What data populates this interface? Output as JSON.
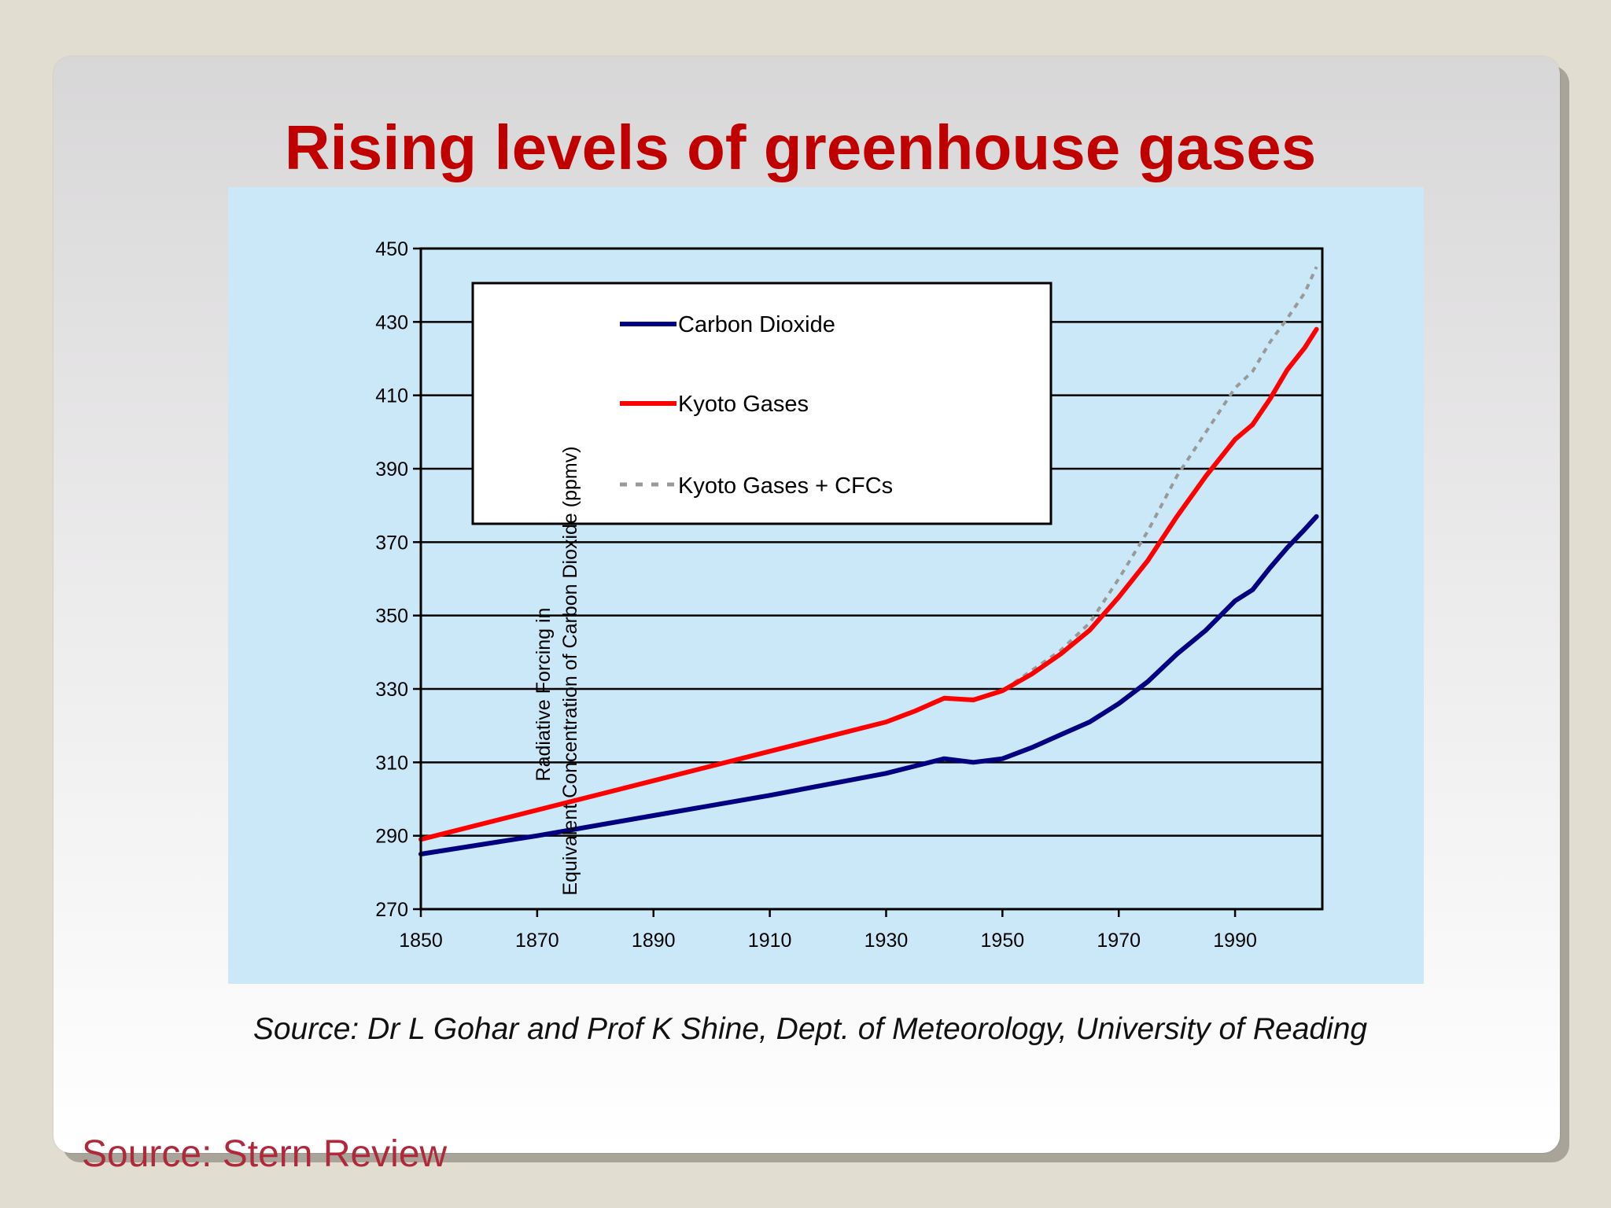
{
  "slide": {
    "title": "Rising levels of greenhouse gases",
    "chart_source": "Source: Dr L Gohar and Prof K Shine, Dept. of Meteorology, University of Reading",
    "footer_source": "Source: Stern Review",
    "colors": {
      "background": "#e2ddd1",
      "title": "#c00000",
      "chart_panel": "#cbe8f8",
      "footer": "#b0283a"
    }
  },
  "chart_data": {
    "type": "line",
    "title": "",
    "xlabel": "",
    "ylabel_lines": [
      "Radiative Forcing in",
      "Equivalent Concentration of Carbon Dioxide (ppmv)"
    ],
    "xlim": [
      1850,
      2005
    ],
    "ylim": [
      270,
      450
    ],
    "x_ticks": [
      1850,
      1870,
      1890,
      1910,
      1930,
      1950,
      1970,
      1990
    ],
    "y_ticks": [
      270,
      290,
      310,
      330,
      350,
      370,
      390,
      410,
      430,
      450
    ],
    "grid": "horizontal",
    "legend_position": "top-left",
    "series": [
      {
        "name": "Carbon Dioxide",
        "color": "#000080",
        "style": "solid",
        "points": [
          [
            1850,
            285
          ],
          [
            1870,
            290
          ],
          [
            1890,
            295.5
          ],
          [
            1910,
            301
          ],
          [
            1930,
            307
          ],
          [
            1935,
            309
          ],
          [
            1940,
            311
          ],
          [
            1945,
            310
          ],
          [
            1950,
            311
          ],
          [
            1955,
            314
          ],
          [
            1960,
            317.5
          ],
          [
            1965,
            321
          ],
          [
            1970,
            326
          ],
          [
            1975,
            332
          ],
          [
            1980,
            339.5
          ],
          [
            1985,
            346
          ],
          [
            1990,
            354
          ],
          [
            1993,
            357
          ],
          [
            1996,
            363
          ],
          [
            1999,
            368.5
          ],
          [
            2002,
            373.5
          ],
          [
            2004,
            377
          ]
        ]
      },
      {
        "name": "Kyoto Gases",
        "color": "#ff0000",
        "style": "solid",
        "points": [
          [
            1850,
            289
          ],
          [
            1870,
            297
          ],
          [
            1890,
            305
          ],
          [
            1910,
            313
          ],
          [
            1930,
            321
          ],
          [
            1935,
            324
          ],
          [
            1940,
            327.5
          ],
          [
            1945,
            327
          ],
          [
            1950,
            329.5
          ],
          [
            1955,
            334
          ],
          [
            1960,
            339.5
          ],
          [
            1965,
            346
          ],
          [
            1970,
            355
          ],
          [
            1975,
            365
          ],
          [
            1980,
            377
          ],
          [
            1985,
            388
          ],
          [
            1990,
            398
          ],
          [
            1993,
            402
          ],
          [
            1996,
            409
          ],
          [
            1999,
            417
          ],
          [
            2002,
            423
          ],
          [
            2004,
            428
          ]
        ]
      },
      {
        "name": "Kyoto Gases + CFCs",
        "color": "#999999",
        "style": "dashed",
        "points": [
          [
            1850,
            289
          ],
          [
            1870,
            297
          ],
          [
            1890,
            305
          ],
          [
            1910,
            313
          ],
          [
            1930,
            321
          ],
          [
            1935,
            324
          ],
          [
            1940,
            327.5
          ],
          [
            1945,
            327
          ],
          [
            1950,
            329.5
          ],
          [
            1955,
            335
          ],
          [
            1960,
            340.5
          ],
          [
            1965,
            348
          ],
          [
            1970,
            360
          ],
          [
            1975,
            373
          ],
          [
            1980,
            388
          ],
          [
            1985,
            400
          ],
          [
            1990,
            412
          ],
          [
            1993,
            416.5
          ],
          [
            1996,
            424.5
          ],
          [
            1999,
            431
          ],
          [
            2002,
            438
          ],
          [
            2004,
            445
          ]
        ]
      }
    ]
  }
}
